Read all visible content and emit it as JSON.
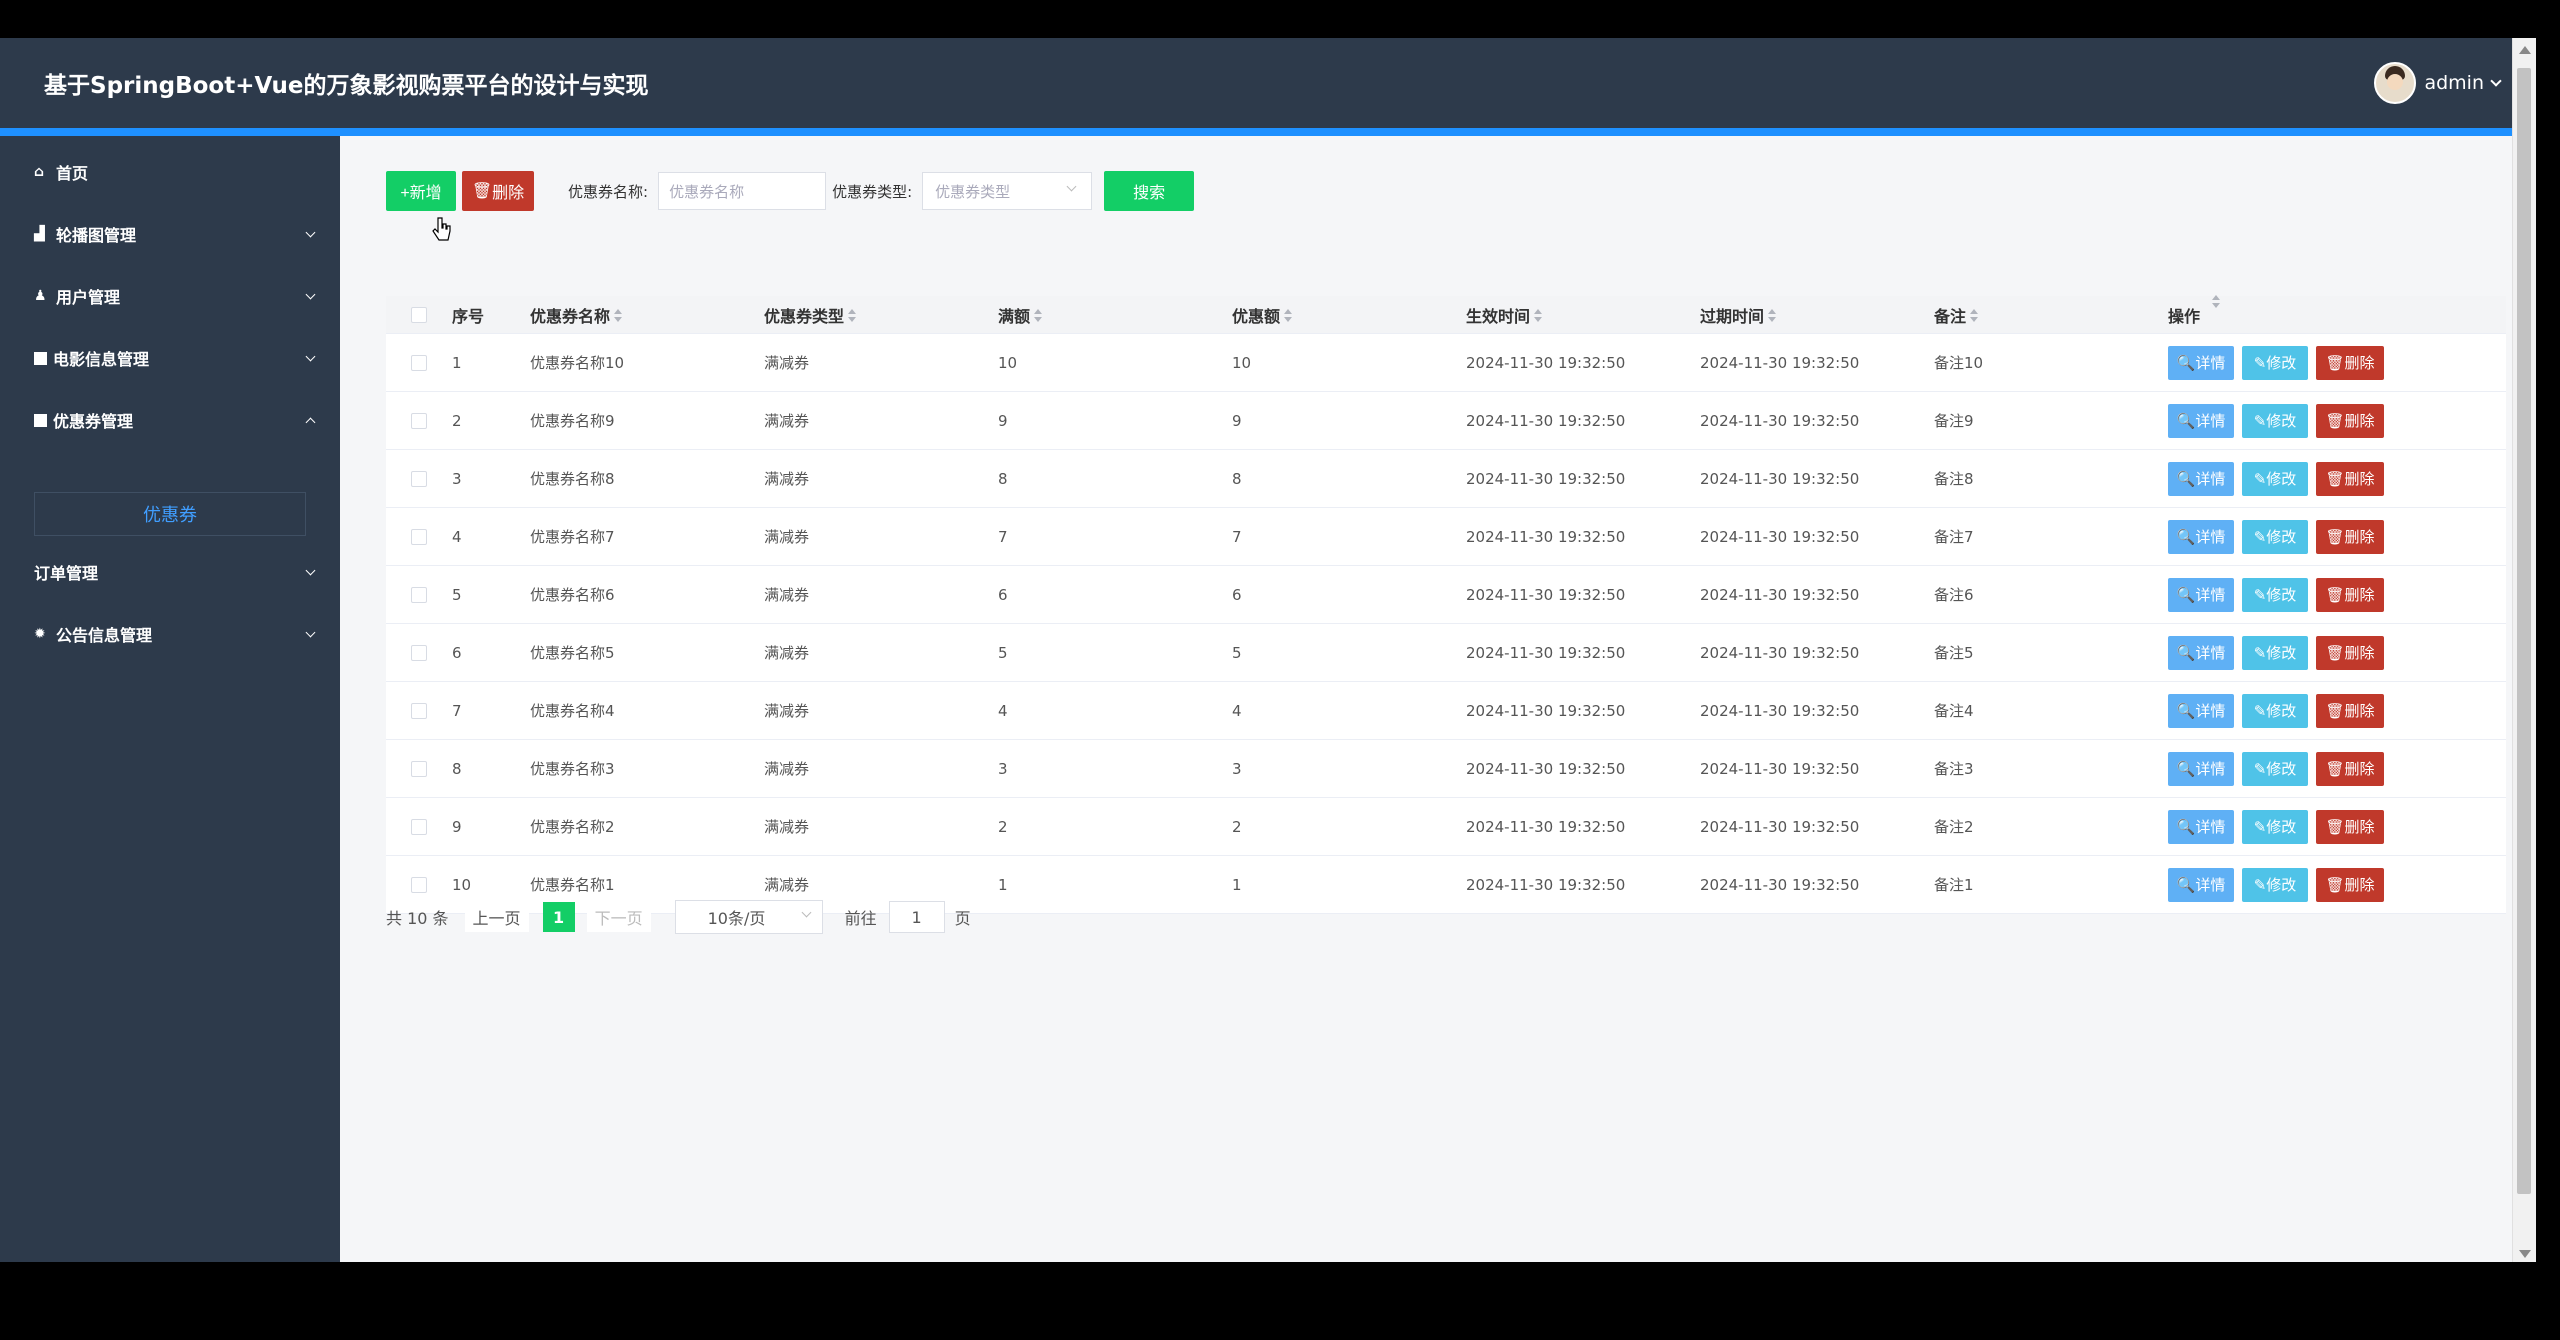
{
  "app": {
    "title": "基于SpringBoot+Vue的万象影视购票平台的设计与实现",
    "user": "admin"
  },
  "sidebar": {
    "items": [
      {
        "label": "首页",
        "icon": "home-icon"
      },
      {
        "label": "轮播图管理",
        "icon": "image-icon"
      },
      {
        "label": "用户管理",
        "icon": "user-icon"
      },
      {
        "label": "电影信息管理",
        "icon": "table-icon"
      },
      {
        "label": "优惠券管理",
        "icon": "table-icon"
      },
      {
        "label": "订单管理",
        "icon": ""
      },
      {
        "label": "公告信息管理",
        "icon": "gear-icon"
      }
    ],
    "active_sub": "优惠券"
  },
  "toolbar": {
    "add_label": "+新增",
    "delete_label": "删除",
    "name_label": "优惠券名称:",
    "name_placeholder": "优惠券名称",
    "type_label": "优惠券类型:",
    "type_placeholder": "优惠券类型",
    "search_label": "搜索"
  },
  "table": {
    "headers": [
      "序号",
      "优惠券名称",
      "优惠券类型",
      "满额",
      "优惠额",
      "生效时间",
      "过期时间",
      "备注",
      "操作"
    ],
    "actions": {
      "detail": "详情",
      "edit": "修改",
      "delete": "删除"
    },
    "rows": [
      {
        "no": "1",
        "name": "优惠券名称10",
        "type": "满减券",
        "full": "10",
        "discount": "10",
        "start": "2024-11-30 19:32:50",
        "end": "2024-11-30 19:32:50",
        "remark": "备注10"
      },
      {
        "no": "2",
        "name": "优惠券名称9",
        "type": "满减券",
        "full": "9",
        "discount": "9",
        "start": "2024-11-30 19:32:50",
        "end": "2024-11-30 19:32:50",
        "remark": "备注9"
      },
      {
        "no": "3",
        "name": "优惠券名称8",
        "type": "满减券",
        "full": "8",
        "discount": "8",
        "start": "2024-11-30 19:32:50",
        "end": "2024-11-30 19:32:50",
        "remark": "备注8"
      },
      {
        "no": "4",
        "name": "优惠券名称7",
        "type": "满减券",
        "full": "7",
        "discount": "7",
        "start": "2024-11-30 19:32:50",
        "end": "2024-11-30 19:32:50",
        "remark": "备注7"
      },
      {
        "no": "5",
        "name": "优惠券名称6",
        "type": "满减券",
        "full": "6",
        "discount": "6",
        "start": "2024-11-30 19:32:50",
        "end": "2024-11-30 19:32:50",
        "remark": "备注6"
      },
      {
        "no": "6",
        "name": "优惠券名称5",
        "type": "满减券",
        "full": "5",
        "discount": "5",
        "start": "2024-11-30 19:32:50",
        "end": "2024-11-30 19:32:50",
        "remark": "备注5"
      },
      {
        "no": "7",
        "name": "优惠券名称4",
        "type": "满减券",
        "full": "4",
        "discount": "4",
        "start": "2024-11-30 19:32:50",
        "end": "2024-11-30 19:32:50",
        "remark": "备注4"
      },
      {
        "no": "8",
        "name": "优惠券名称3",
        "type": "满减券",
        "full": "3",
        "discount": "3",
        "start": "2024-11-30 19:32:50",
        "end": "2024-11-30 19:32:50",
        "remark": "备注3"
      },
      {
        "no": "9",
        "name": "优惠券名称2",
        "type": "满减券",
        "full": "2",
        "discount": "2",
        "start": "2024-11-30 19:32:50",
        "end": "2024-11-30 19:32:50",
        "remark": "备注2"
      },
      {
        "no": "10",
        "name": "优惠券名称1",
        "type": "满减券",
        "full": "1",
        "discount": "1",
        "start": "2024-11-30 19:32:50",
        "end": "2024-11-30 19:32:50",
        "remark": "备注1"
      }
    ]
  },
  "pager": {
    "total": "共 10 条",
    "prev": "上一页",
    "current": "1",
    "next": "下一页",
    "size": "10条/页",
    "goto": "前往",
    "goto_value": "1",
    "unit": "页"
  },
  "colors": {
    "header_bg": "#2d3a4b",
    "accent_bar": "#1e90ff",
    "primary_green": "#13ce66",
    "danger_red": "#c0392b",
    "info_blue": "#5fb0f5"
  }
}
